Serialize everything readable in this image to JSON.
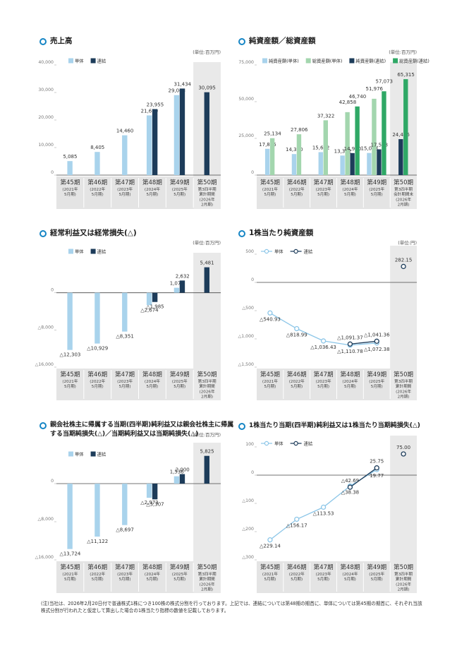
{
  "chart_data": [
    {
      "type": "bar",
      "title": "売上高",
      "unit": "(単位:百万円)",
      "categories": [
        "第45期",
        "第46期",
        "第47期",
        "第48期",
        "第49期",
        "第50期"
      ],
      "category_notes": [
        [
          "(2021年",
          "5月期)"
        ],
        [
          "(2022年",
          "5月期)"
        ],
        [
          "(2023年",
          "5月期)"
        ],
        [
          "(2024年",
          "5月期)"
        ],
        [
          "(2025年",
          "5月期)"
        ],
        [
          "第3四半期",
          "累計期間",
          "(2026年",
          "2月期)"
        ]
      ],
      "series": [
        {
          "name": "単体",
          "color": "#a9d3ec",
          "values": [
            5085,
            8405,
            14460,
            21679,
            29043,
            null
          ],
          "value_labels": [
            "5,085",
            "8,405",
            "14,460",
            "21,679",
            "29,043",
            null
          ]
        },
        {
          "name": "連結",
          "color": "#1d3c5a",
          "values": [
            null,
            null,
            null,
            23955,
            31434,
            30095
          ],
          "value_labels": [
            null,
            null,
            null,
            "23,955",
            "31,434",
            "30,095"
          ]
        }
      ],
      "ylim": [
        0,
        40000
      ],
      "yticks": [
        0,
        {
          "value": 10000,
          "label": "10,000"
        },
        {
          "value": 20000,
          "label": "20,000"
        },
        {
          "value": 30000,
          "label": "30,000"
        },
        {
          "value": 40000,
          "label": "40,000"
        }
      ]
    },
    {
      "type": "bar",
      "title": "純資産額／総資産額",
      "unit": "(単位:百万円)",
      "categories": [
        "第45期",
        "第46期",
        "第47期",
        "第48期",
        "第49期",
        "第50期"
      ],
      "category_notes": [
        [
          "(2021年",
          "5月期)"
        ],
        [
          "(2022年",
          "5月期)"
        ],
        [
          "(2023年",
          "5月期)"
        ],
        [
          "(2024年",
          "5月期)"
        ],
        [
          "(2025年",
          "5月期)"
        ],
        [
          "第3四半期",
          "会計期間末",
          "(2026年",
          "2月期)"
        ]
      ],
      "series": [
        {
          "name": "純資産額(単体)",
          "color": "#a9d3ec",
          "values": [
            17895,
            14330,
            15632,
            13322,
            15068,
            null
          ],
          "value_labels": [
            "17,895",
            "14,330",
            "15,632",
            "13,322",
            "15,068",
            null
          ]
        },
        {
          "name": "総資産額(単体)",
          "color": "#a3d6ae",
          "values": [
            25134,
            27806,
            37322,
            42858,
            51976,
            null
          ],
          "value_labels": [
            "25,134",
            "27,806",
            "37,322",
            "42,858",
            "51,976",
            null
          ]
        },
        {
          "name": "純資産額(連結)",
          "color": "#1d3c5a",
          "values": [
            null,
            null,
            null,
            14980,
            17528,
            24486
          ],
          "value_labels": [
            null,
            null,
            null,
            "14,980",
            "17,528",
            "24,486"
          ]
        },
        {
          "name": "総資産額(連結)",
          "color": "#2fa866",
          "values": [
            null,
            null,
            null,
            46740,
            57073,
            65315
          ],
          "value_labels": [
            null,
            null,
            null,
            "46,740",
            "57,073",
            "65,315"
          ]
        }
      ],
      "ylim": [
        0,
        75000
      ],
      "yticks": [
        0,
        {
          "value": 25000,
          "label": "25,000"
        },
        {
          "value": 50000,
          "label": "50,000"
        },
        {
          "value": 75000,
          "label": "75,000"
        }
      ]
    },
    {
      "type": "bar",
      "title": "経常利益又は経常損失(△)",
      "unit": "(単位:百万円)",
      "categories": [
        "第45期",
        "第46期",
        "第47期",
        "第48期",
        "第49期",
        "第50期"
      ],
      "category_notes": [
        [
          "(2021年",
          "5月期)"
        ],
        [
          "(2022年",
          "5月期)"
        ],
        [
          "(2023年",
          "5月期)"
        ],
        [
          "(2024年",
          "5月期)"
        ],
        [
          "(2025年",
          "5月期)"
        ],
        [
          "第3四半期",
          "累計期間",
          "(2026年",
          "2月期)"
        ]
      ],
      "series": [
        {
          "name": "単体",
          "color": "#a9d3ec",
          "values": [
            -12303,
            -10929,
            -8351,
            -2674,
            1073,
            null
          ],
          "value_labels": [
            "△12,303",
            "△10,929",
            "△8,351",
            "△2,674",
            "1,073",
            null
          ]
        },
        {
          "name": "連結",
          "color": "#1d3c5a",
          "values": [
            null,
            null,
            null,
            -1985,
            2632,
            5481
          ],
          "value_labels": [
            null,
            null,
            null,
            "△1,985",
            "2,632",
            "5,481"
          ]
        }
      ],
      "ylim": [
        -16000,
        8000
      ],
      "yticks": [
        0,
        {
          "value": -8000,
          "label": "△8,000"
        },
        {
          "value": -16000,
          "label": "△16,000"
        }
      ]
    },
    {
      "type": "line",
      "title": "1株当たり純資産額",
      "unit": "(単位:円)",
      "categories": [
        "第45期",
        "第46期",
        "第47期",
        "第48期",
        "第49期",
        "第50期"
      ],
      "category_notes": [
        [
          "(2021年",
          "5月期)"
        ],
        [
          "(2022年",
          "5月期)"
        ],
        [
          "(2023年",
          "5月期)"
        ],
        [
          "(2024年",
          "5月期)"
        ],
        [
          "(2025年",
          "5月期)"
        ],
        [
          "第3四半期",
          "累計期間",
          "(2026年",
          "2月期)"
        ]
      ],
      "series": [
        {
          "name": "単体",
          "color": "#8cc6e8",
          "values": [
            -540.93,
            -818.99,
            -1036.43,
            -1110.78,
            -1072.38,
            null
          ],
          "value_labels": [
            "△540.93",
            "△818.99",
            "△1,036.43",
            "△1,110.78",
            "△1,072.38",
            null
          ]
        },
        {
          "name": "連結",
          "color": "#1d3c5a",
          "values": [
            null,
            null,
            null,
            -1091.37,
            -1041.36,
            282.15
          ],
          "value_labels": [
            null,
            null,
            null,
            "△1,091.37",
            "△1,041.36",
            "282.15"
          ]
        }
      ],
      "ylim": [
        -1500,
        600
      ],
      "yticks": [
        500,
        0,
        {
          "value": -500,
          "label": "△500"
        },
        {
          "value": -1000,
          "label": "△1,000"
        },
        {
          "value": -1500,
          "label": "△1,500"
        }
      ]
    },
    {
      "type": "bar",
      "title": "親会社株主に帰属する当期(四半期)純利益又は親会社株主に帰属する当期純損失(△)／当期純利益又は当期純損失(△)",
      "unit": "(単位:百万円)",
      "categories": [
        "第45期",
        "第46期",
        "第47期",
        "第48期",
        "第49期",
        "第50期"
      ],
      "category_notes": [
        [
          "(2021年",
          "5月期)"
        ],
        [
          "(2022年",
          "5月期)"
        ],
        [
          "(2023年",
          "5月期)"
        ],
        [
          "(2024年",
          "5月期)"
        ],
        [
          "(2025年",
          "5月期)"
        ],
        [
          "第3四半期",
          "累計期間",
          "(2026年",
          "2月期)"
        ]
      ],
      "series": [
        {
          "name": "単体",
          "color": "#a9d3ec",
          "values": [
            -13724,
            -11122,
            -8697,
            -2973,
            1536,
            null
          ],
          "value_labels": [
            "△13,724",
            "△11,122",
            "△8,697",
            "△2,973",
            "1,536",
            null
          ]
        },
        {
          "name": "連結",
          "color": "#1d3c5a",
          "values": [
            null,
            null,
            null,
            -3307,
            2000,
            5825
          ],
          "value_labels": [
            null,
            null,
            null,
            "△3,307",
            "2,000",
            "5,825"
          ]
        }
      ],
      "ylim": [
        -16000,
        8000
      ],
      "yticks": [
        0,
        {
          "value": -8000,
          "label": "△8,000"
        },
        {
          "value": -16000,
          "label": "△16,000"
        }
      ]
    },
    {
      "type": "line",
      "title": "1株当たり当期(四半期)純利益又は1株当たり当期純損失(△)",
      "categories": [
        "第45期",
        "第46期",
        "第47期",
        "第48期",
        "第49期",
        "第50期"
      ],
      "category_notes": [
        [
          "(2021年",
          "5月期)"
        ],
        [
          "(2022年",
          "5月期)"
        ],
        [
          "(2023年",
          "5月期)"
        ],
        [
          "(2024年",
          "5月期)"
        ],
        [
          "(2025年",
          "5月期)"
        ],
        [
          "第3四半期",
          "累計期間",
          "(2026年",
          "2月期)"
        ]
      ],
      "series": [
        {
          "name": "単体",
          "color": "#8cc6e8",
          "values": [
            -229.14,
            -156.17,
            -113.53,
            -38.38,
            19.77,
            null
          ],
          "value_labels": [
            "△229.14",
            "△156.17",
            "△113.53",
            "△38.38",
            "19.77",
            null
          ]
        },
        {
          "name": "連結",
          "color": "#1d3c5a",
          "values": [
            null,
            null,
            null,
            -42.69,
            25.75,
            75.0
          ],
          "value_labels": [
            null,
            null,
            null,
            "△42.69",
            "25.75",
            "75.00"
          ]
        }
      ],
      "ylim": [
        -300,
        130
      ],
      "yticks": [
        100,
        0,
        {
          "value": -100,
          "label": "△100"
        },
        {
          "value": -200,
          "label": "△200"
        },
        {
          "value": -300,
          "label": "△300"
        }
      ]
    }
  ],
  "footnote": "(注)当社は、2026年2月20日付で普通株式1株につき100株の株式分割を行っております。上記では、連結については第48期の期首に、単体については第45期の期首に、それぞれ当該株式分割が行われたと仮定して算出した場合の1株当たり指標の数値を記載しております。"
}
